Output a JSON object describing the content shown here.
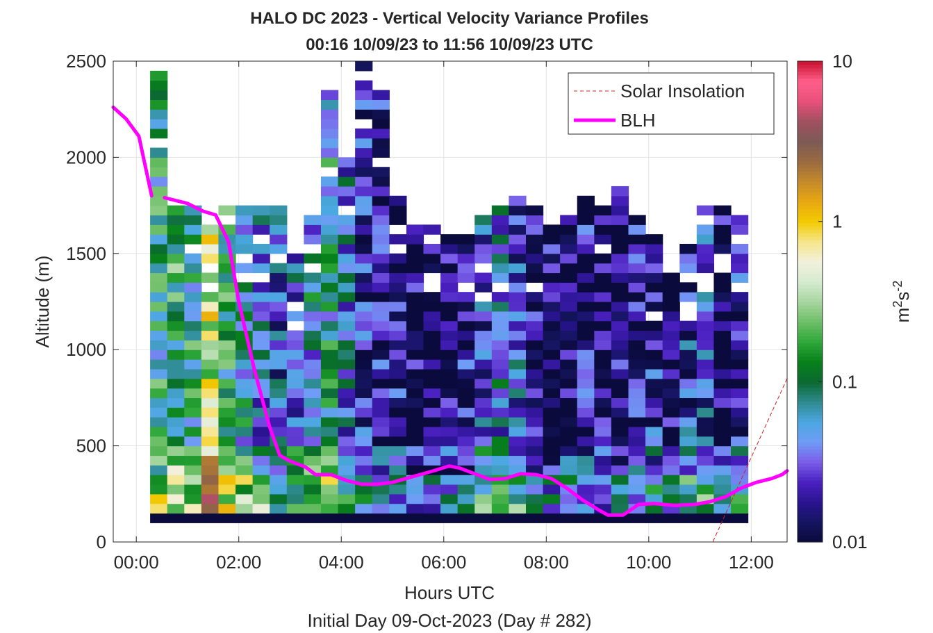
{
  "chart_data": {
    "type": "heatmap",
    "title": "HALO DC 2023 - Vertical Velocity Variance Profiles",
    "subtitle": "00:16 10/09/23 to 11:56 10/09/23  UTC",
    "xlabel": "Hours UTC",
    "xlabel2": "Initial Day 09-Oct-2023 (Day # 282)",
    "ylabel": "Altitude (m)",
    "xlim_hours": [
      -0.45,
      12.7
    ],
    "ylim": [
      0,
      2500
    ],
    "grid": true,
    "x_ticks": [
      {
        "value": 0,
        "label": "00:00"
      },
      {
        "value": 2,
        "label": "02:00"
      },
      {
        "value": 4,
        "label": "04:00"
      },
      {
        "value": 6,
        "label": "06:00"
      },
      {
        "value": 8,
        "label": "08:00"
      },
      {
        "value": 10,
        "label": "10:00"
      },
      {
        "value": 12,
        "label": "12:00"
      }
    ],
    "y_ticks": [
      {
        "value": 0,
        "label": "0"
      },
      {
        "value": 500,
        "label": "500"
      },
      {
        "value": 1000,
        "label": "1000"
      },
      {
        "value": 1500,
        "label": "1500"
      },
      {
        "value": 2000,
        "label": "2000"
      },
      {
        "value": 2500,
        "label": "2500"
      }
    ],
    "heatmap": {
      "x_start_hours": 0.27,
      "x_step_hours": 0.3333,
      "alt_start_m": 100,
      "alt_step_m": 50,
      "columns": 35,
      "rows": 48,
      "value_scale": "log10",
      "approximate": true,
      "profile_tops_m": [
        2500,
        1800,
        1750,
        1700,
        1750,
        1750,
        1750,
        1800,
        1500,
        1700,
        2350,
        2000,
        2500,
        2350,
        1850,
        1700,
        1650,
        1600,
        1600,
        1700,
        1750,
        1800,
        1750,
        1650,
        1700,
        1800,
        1800,
        1850,
        1700,
        1600,
        1400,
        1550,
        1750,
        1800,
        1700
      ],
      "profile_median_log10": [
        -1.0,
        -0.9,
        -1.0,
        -0.3,
        -0.9,
        -1.1,
        -1.3,
        -1.5,
        -1.4,
        -1.2,
        -1.1,
        -1.4,
        -1.7,
        -1.8,
        -1.8,
        -1.9,
        -1.9,
        -1.9,
        -1.8,
        -1.5,
        -1.3,
        -1.5,
        -1.8,
        -1.9,
        -1.9,
        -1.8,
        -1.9,
        -1.9,
        -1.8,
        -1.7,
        -1.9,
        -1.6,
        -1.5,
        -1.9,
        -1.7
      ]
    },
    "colorbar": {
      "label": "m²s⁻²",
      "label_parts": [
        "m",
        "2",
        "s",
        "-2"
      ],
      "scale": "log",
      "range": [
        0.01,
        10
      ],
      "ticks": [
        {
          "value": 0.01,
          "label": "0.01"
        },
        {
          "value": 0.1,
          "label": "0.1"
        },
        {
          "value": 1,
          "label": "1"
        },
        {
          "value": 10,
          "label": "10"
        }
      ],
      "colors": [
        "#0a0a3c",
        "#151560",
        "#2a1490",
        "#4a20c0",
        "#7a5ee8",
        "#6f9cf5",
        "#4ba8e0",
        "#2e8a8e",
        "#0a6a30",
        "#07811a",
        "#2fa83a",
        "#6ebf68",
        "#a7d6a0",
        "#d6ebd0",
        "#f2f0dc",
        "#f6e68a",
        "#f2ca00",
        "#e8a812",
        "#c48a2a",
        "#9a6a40",
        "#7d5a55",
        "#a0505f",
        "#e8507a",
        "#ff5f8a",
        "#c8102e"
      ]
    },
    "series": [
      {
        "name": "Solar Insolation",
        "style": "dashed",
        "color": "#d11f1f",
        "x": [
          -0.45,
          11.25,
          12.7
        ],
        "y": [
          0,
          0,
          850
        ]
      },
      {
        "name": "BLH",
        "style": "solid",
        "color": "#ff00ff",
        "segments": [
          {
            "x": [
              -0.45,
              -0.2,
              0.05,
              0.3
            ],
            "y": [
              2260,
              2200,
              2110,
              1800
            ]
          },
          {
            "x": [
              0.55,
              1.0,
              1.3,
              1.55,
              1.8,
              2.0,
              2.3,
              2.6,
              2.8,
              3.0,
              3.3,
              3.5,
              3.8,
              4.1,
              4.4,
              4.7,
              5.0,
              5.4,
              5.8,
              6.1,
              6.3,
              6.6,
              6.9,
              7.2,
              7.5,
              7.8,
              8.1,
              8.4,
              8.7,
              9.0,
              9.2,
              9.5,
              9.8,
              10.1,
              10.5,
              10.9,
              11.2,
              11.5,
              11.8,
              12.1,
              12.4,
              12.6,
              12.7
            ],
            "y": [
              1790,
              1760,
              1720,
              1700,
              1560,
              1250,
              900,
              600,
              450,
              420,
              390,
              350,
              350,
              320,
              300,
              300,
              310,
              340,
              370,
              395,
              385,
              355,
              325,
              330,
              355,
              350,
              330,
              280,
              220,
              170,
              140,
              140,
              195,
              200,
              190,
              195,
              210,
              235,
              280,
              310,
              330,
              350,
              370
            ]
          }
        ]
      }
    ],
    "legend": {
      "location": "top-right",
      "entries": [
        "Solar Insolation",
        "BLH"
      ]
    }
  }
}
